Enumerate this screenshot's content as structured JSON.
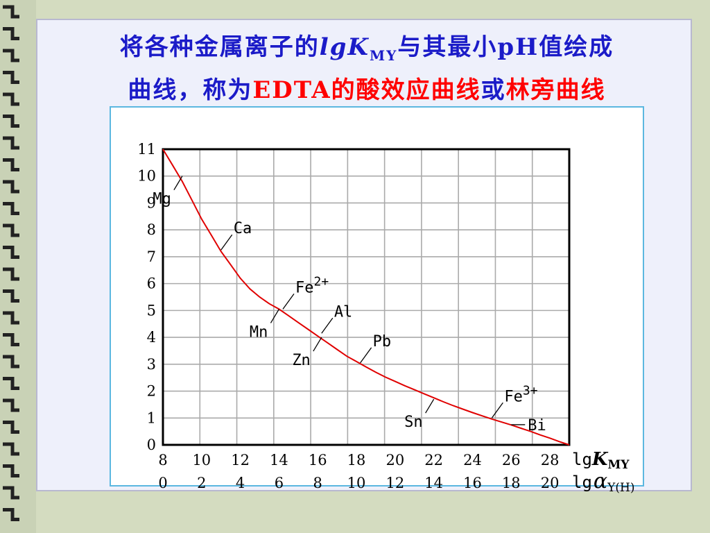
{
  "title": {
    "part1": "将各种金属离子的",
    "lg": "lg",
    "K": "K",
    "K_sub": "MY",
    "part2": "与其最小",
    "pH": "pH",
    "part3": "值绘成",
    "part4": "曲线，称为",
    "edta": "EDTA",
    "curve_name1": "的酸效应曲线",
    "or": "或",
    "curve_name2": "林旁曲线"
  },
  "colors": {
    "title_blue": "#1b1bc8",
    "highlight_red": "#ff0000",
    "curve": "#e00000",
    "frame": "#5bb7e0"
  },
  "chart_data": {
    "type": "line",
    "x_primary_label": "lgK_MY",
    "x_primary_label_parts": {
      "lg": "lg",
      "sym": "K",
      "sub": "MY"
    },
    "x_secondary_label_parts": {
      "lg": "lg",
      "sym": "α",
      "sub": "Y(H)"
    },
    "x_primary_ticks": [
      "8",
      "10",
      "12",
      "14",
      "16",
      "18",
      "20",
      "22",
      "24",
      "26",
      "28"
    ],
    "x_secondary_ticks": [
      "0",
      "2",
      "4",
      "6",
      "8",
      "10",
      "12",
      "14",
      "16",
      "18",
      "20"
    ],
    "y_ticks": [
      "0",
      "1",
      "2",
      "3",
      "4",
      "5",
      "6",
      "7",
      "8",
      "9",
      "10",
      "11"
    ],
    "xlim": [
      8,
      29
    ],
    "ylim": [
      0,
      11
    ],
    "grid": true,
    "series": [
      {
        "x": [
          8,
          8.5,
          9,
          9.5,
          10,
          10.5,
          11,
          11.5,
          12,
          12.5,
          13,
          13.5,
          14,
          14.5,
          15,
          15.5,
          16,
          16.5,
          17,
          17.5,
          18,
          18.5,
          19,
          19.5,
          20,
          20.5,
          21,
          21.5,
          22,
          22.5,
          23,
          23.5,
          24,
          24.5,
          25,
          25.5,
          26,
          26.5,
          27,
          27.5,
          28,
          28.5,
          29
        ],
        "y": [
          11,
          10.4,
          9.8,
          9.1,
          8.4,
          7.8,
          7.2,
          6.7,
          6.2,
          5.8,
          5.5,
          5.25,
          5.05,
          4.8,
          4.55,
          4.3,
          4.05,
          3.8,
          3.55,
          3.3,
          3.1,
          2.9,
          2.7,
          2.52,
          2.36,
          2.2,
          2.05,
          1.9,
          1.75,
          1.6,
          1.46,
          1.33,
          1.2,
          1.08,
          0.96,
          0.85,
          0.74,
          0.62,
          0.5,
          0.37,
          0.25,
          0.12,
          0.0
        ]
      }
    ],
    "annotations": [
      {
        "text": "Mg",
        "x": 9.0,
        "y": 10.0,
        "side": "below-left"
      },
      {
        "text": "Ca",
        "x": 11.0,
        "y": 7.25,
        "side": "above-right"
      },
      {
        "text": "Mn",
        "x": 14.0,
        "y": 5.05,
        "side": "below-left"
      },
      {
        "text": "Fe",
        "sup": "2+",
        "x": 14.2,
        "y": 5.05,
        "side": "above-right"
      },
      {
        "text": "Al",
        "x": 16.2,
        "y": 4.15,
        "side": "above-right"
      },
      {
        "text": "Zn",
        "x": 16.2,
        "y": 4.0,
        "side": "below-left"
      },
      {
        "text": "Pb",
        "x": 18.2,
        "y": 3.05,
        "side": "above-right"
      },
      {
        "text": "Sn",
        "x": 22.0,
        "y": 1.7,
        "side": "below-left"
      },
      {
        "text": "Fe",
        "sup": "3+",
        "x": 25.0,
        "y": 1.0,
        "side": "above-right"
      },
      {
        "text": "Bi",
        "x": 26.0,
        "y": 0.75,
        "side": "right"
      }
    ]
  }
}
